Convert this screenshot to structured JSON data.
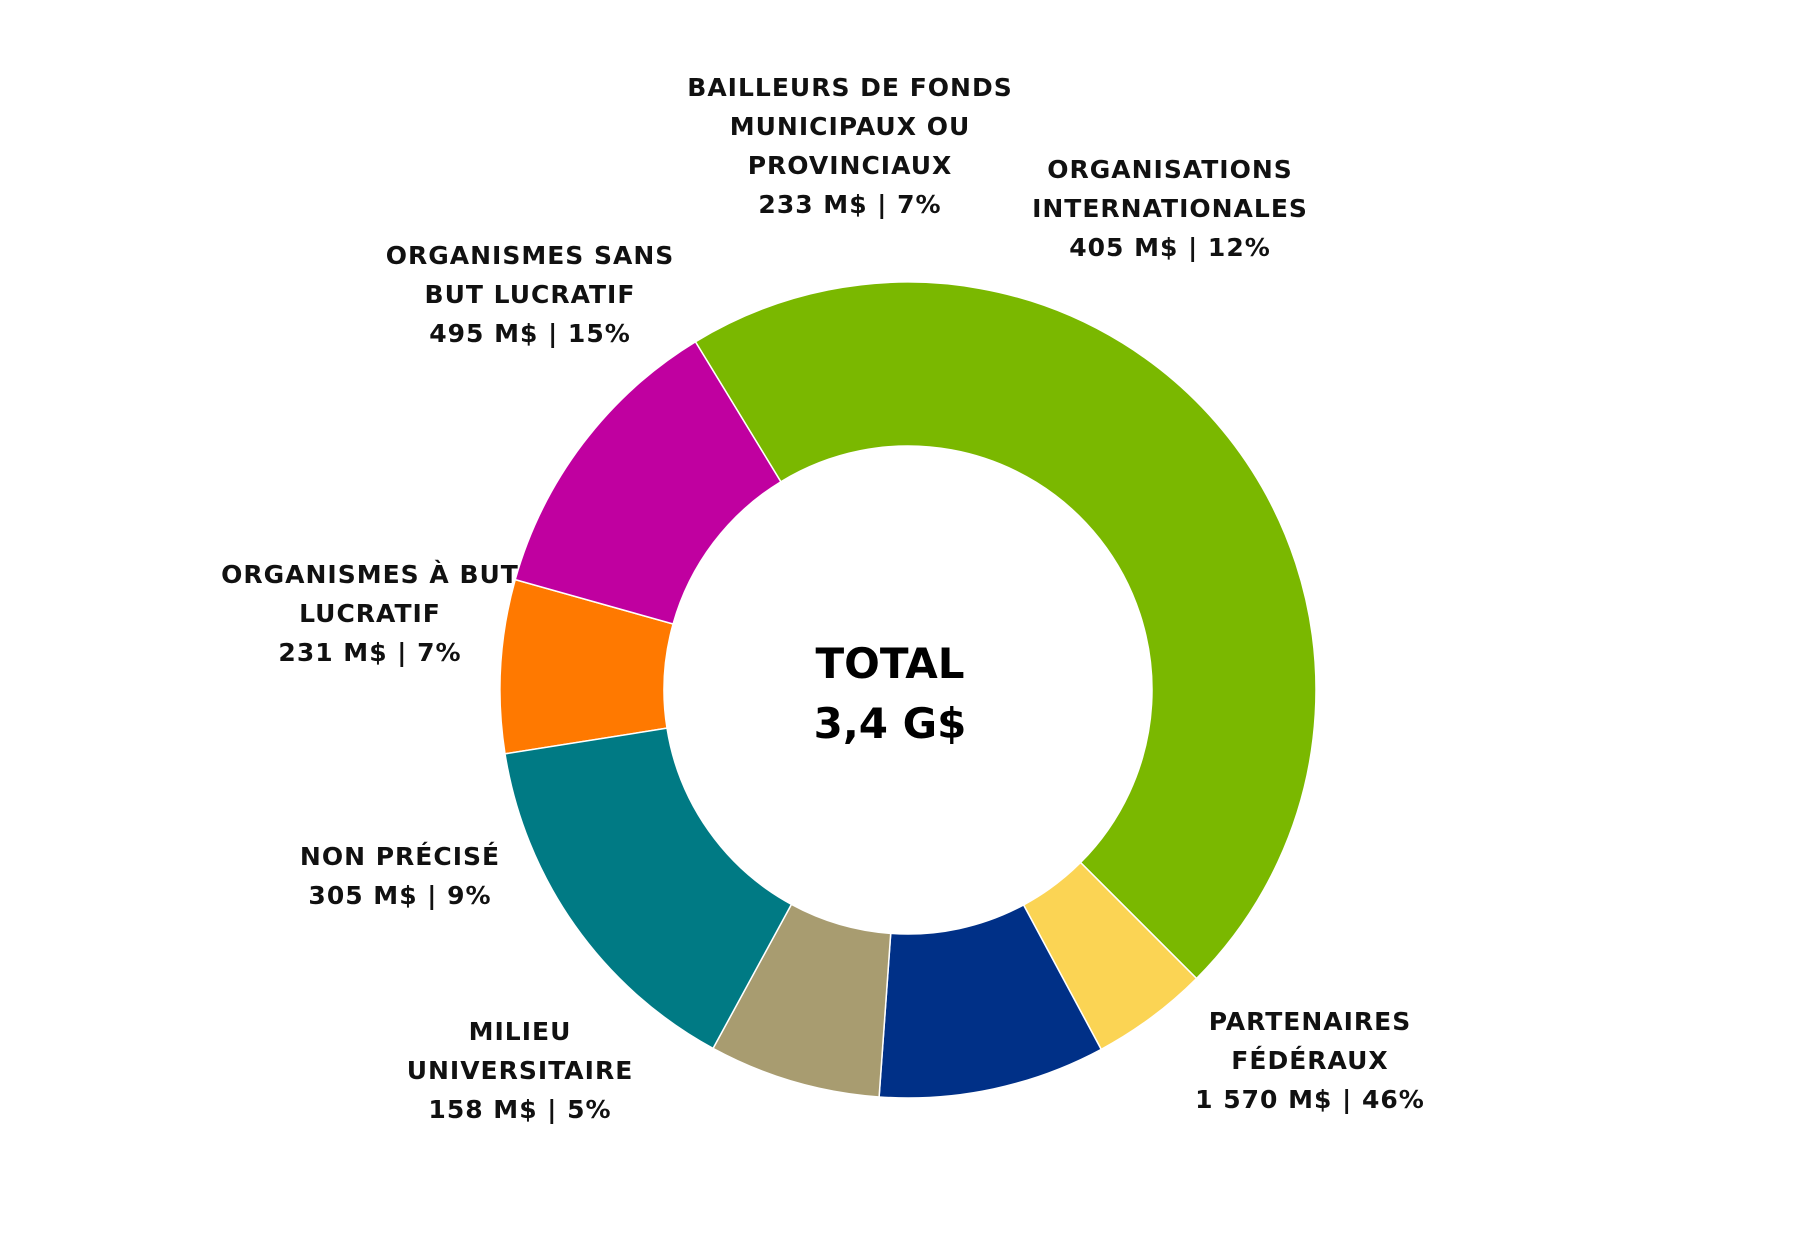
{
  "chart_data": {
    "type": "pie",
    "donut": true,
    "center_label": [
      "TOTAL",
      "3,4 G$"
    ],
    "slices": [
      {
        "name": "BAILLEURS DE FONDS MUNICIPAUX OU PROVINCIAUX",
        "label_lines": [
          "BAILLEURS DE FONDS",
          "MUNICIPAUX OU",
          "PROVINCIAUX",
          "233 M$ | 7%"
        ],
        "value": 233,
        "percent": 7,
        "color": "#FF7900"
      },
      {
        "name": "ORGANISATIONS INTERNATIONALES",
        "label_lines": [
          "ORGANISATIONS",
          "INTERNATIONALES",
          "405 M$ | 12%"
        ],
        "value": 405,
        "percent": 12,
        "color": "#C000A0"
      },
      {
        "name": "PARTENAIRES FÉDÉRAUX",
        "label_lines": [
          "PARTENAIRES",
          "FÉDÉRAUX",
          "1 570 M$ | 46%"
        ],
        "value": 1570,
        "percent": 46,
        "color": "#7AB800"
      },
      {
        "name": "MILIEU UNIVERSITAIRE",
        "label_lines": [
          "MILIEU",
          "UNIVERSITAIRE",
          "158 M$ | 5%"
        ],
        "value": 158,
        "percent": 5,
        "color": "#FBD454"
      },
      {
        "name": "NON PRÉCISÉ",
        "label_lines": [
          "NON PRÉCISÉ",
          "305 M$ | 9%"
        ],
        "value": 305,
        "percent": 9,
        "color": "#003087"
      },
      {
        "name": "ORGANISMES À BUT LUCRATIF",
        "label_lines": [
          "ORGANISMES À BUT",
          "LUCRATIF",
          "231 M$ | 7%"
        ],
        "value": 231,
        "percent": 7,
        "color": "#A89C70"
      },
      {
        "name": "ORGANISMES SANS BUT LUCRATIF",
        "label_lines": [
          "ORGANISMES SANS",
          "BUT LUCRATIF",
          "495 M$ | 15%"
        ],
        "value": 495,
        "percent": 15,
        "color": "#007A84"
      }
    ]
  }
}
